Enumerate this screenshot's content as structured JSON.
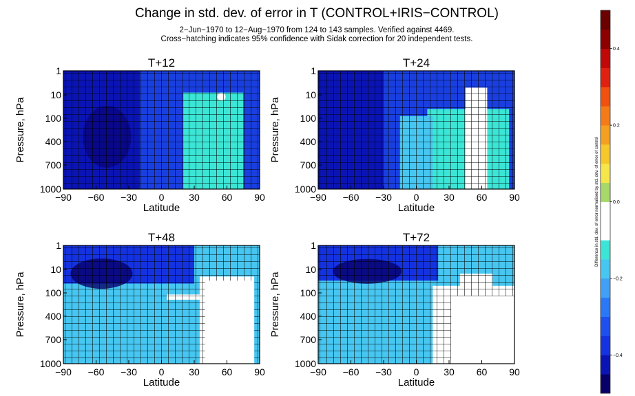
{
  "figure": {
    "title": "Change in std. dev. of error in T (CONTROL+IRIS−CONTROL)",
    "subtitle_line1": "2−Jun−1970 to 12−Aug−1970 from 124 to 143 samples. Verified against 4469.",
    "subtitle_line2": "Cross−hatching indicates 95% confidence with Sidak correction for 20 independent tests."
  },
  "chart_data": {
    "type": "heatmap",
    "x_ticks": [
      "−90",
      "−60",
      "−30",
      "0",
      "30",
      "60",
      "90"
    ],
    "x_tick_values": [
      -90,
      -60,
      -30,
      0,
      30,
      60,
      90
    ],
    "xlim": [
      -90,
      90
    ],
    "xlabel": "Latitude",
    "y_ticks": [
      "1",
      "10",
      "100",
      "400",
      "700",
      "1000"
    ],
    "y_tick_values": [
      1,
      10,
      100,
      400,
      700,
      1000
    ],
    "ylim": [
      1,
      1000
    ],
    "ylabel": "Pressure, hPa",
    "panels": [
      {
        "title": "T+12",
        "cross_hatched": "nearly all"
      },
      {
        "title": "T+24",
        "cross_hatched": "nearly all",
        "white_region": "45 to 65 latitude, 5 to 1000 hPa"
      },
      {
        "title": "T+48",
        "cross_hatched": "mostly",
        "white_region": "35 to 85 latitude, 20 to 1000 hPa"
      },
      {
        "title": "T+72",
        "cross_hatched": "mostly",
        "white_region": "15 to 90 latitude, 50 to 1000 hPa"
      }
    ],
    "colorbar": {
      "label": "Difference in std. dev. of error normalised by std. dev. of error of control",
      "ticks": [
        "0.4",
        "0.2",
        "0.0",
        "−0.2",
        "−0.4"
      ],
      "tick_values": [
        0.4,
        0.2,
        0.0,
        -0.2,
        -0.4
      ],
      "range": [
        -0.5,
        0.5
      ],
      "colors": [
        "#08006a",
        "#0a14b4",
        "#1432e0",
        "#1e50f0",
        "#2a78f5",
        "#3fa0f5",
        "#46c6f0",
        "#3ce6d6",
        "#ffffff",
        "#ffffff",
        "#a6d96a",
        "#f6e64a",
        "#f6c82a",
        "#f5a020",
        "#f57a18",
        "#f05010",
        "#e02010",
        "#c00808",
        "#8c0000",
        "#6a0000"
      ]
    }
  }
}
